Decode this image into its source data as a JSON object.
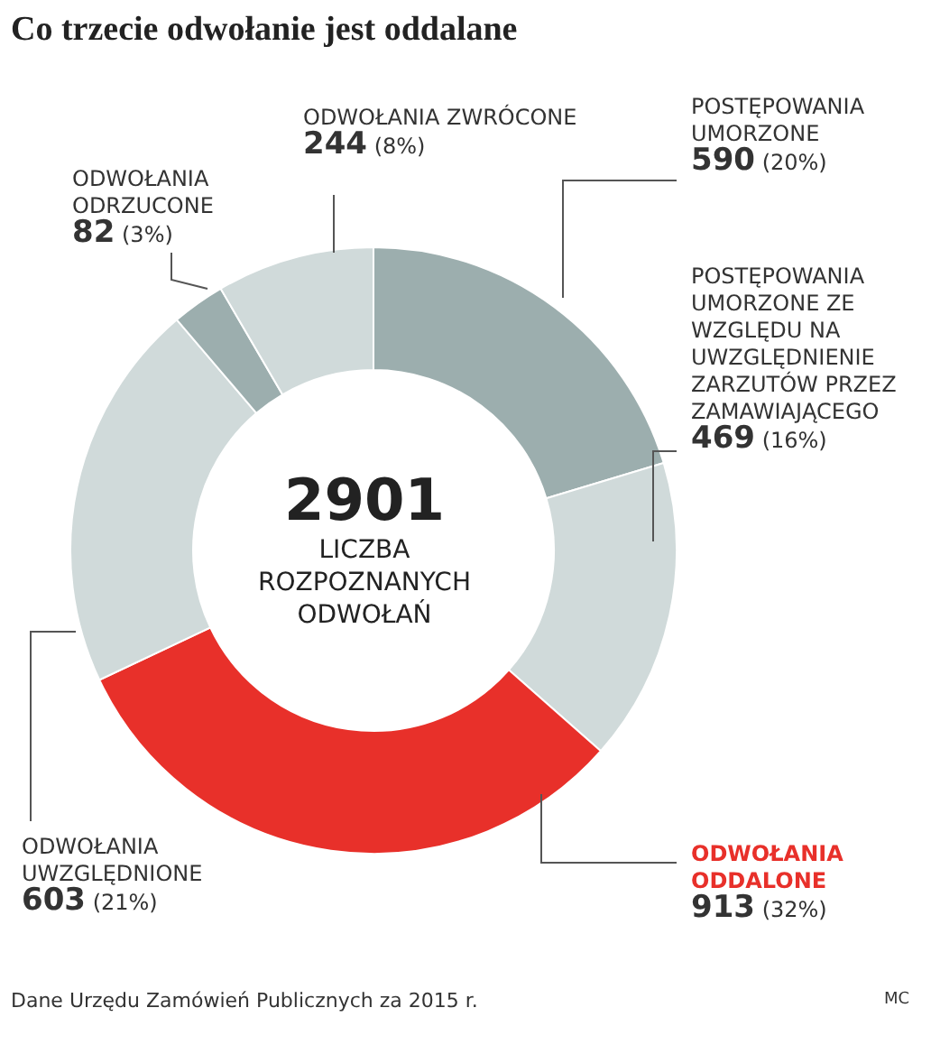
{
  "chart_data": {
    "type": "donut",
    "title": "Co trzecie odwołanie jest oddalane",
    "categories": [
      "POSTĘPOWANIA UMORZONE",
      "POSTĘPOWANIA UMORZONE ZE WZGLĘDU NA UWZGLĘDNIENIE ZARZUTÓW PRZEZ ZAMAWIAJĄCEGO",
      "ODWOŁANIA ODDALONE",
      "ODWOŁANIA UWZGLĘDNIONE",
      "ODWOŁANIA ODRZUCONE",
      "ODWOŁANIA ZWRÓCONE"
    ],
    "values": [
      590,
      469,
      913,
      603,
      82,
      244
    ],
    "value_labels": [
      "590 (20%)",
      "469 (16%)",
      "913 (32%)",
      "603 (21%)",
      "82 (3%)",
      "244 (8%)"
    ],
    "colors": [
      "#9caeae",
      "#d0dada",
      "#e8302a",
      "#d0dada",
      "#9caeae",
      "#d0dada"
    ],
    "annotations": [
      "2901",
      "LICZBA ROZPOZNANYCH ODWOŁAŃ",
      "Dane Urzędu Zamówień Publicznych za 2015 r.",
      "MC"
    ],
    "legend": false
  }
}
